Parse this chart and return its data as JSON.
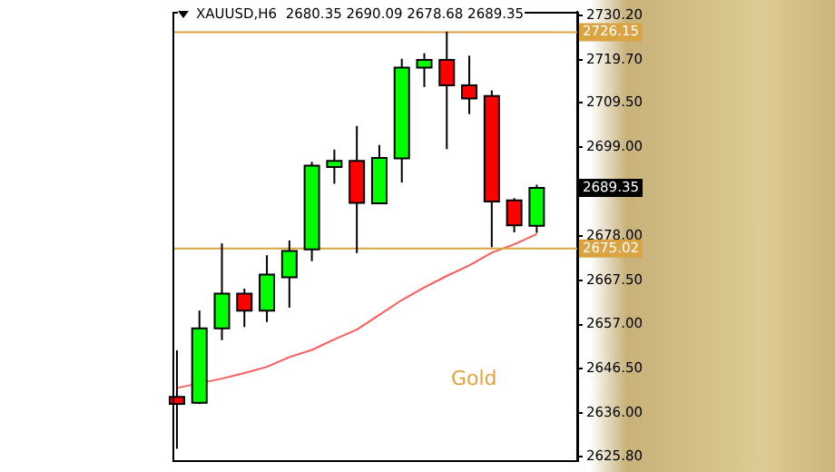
{
  "chart_data": {
    "type": "candlestick",
    "title": "XAUUSD,H6  2680.35 2690.09 2678.68 2689.35",
    "categories": [
      null,
      null,
      null,
      null,
      null,
      null,
      null,
      null,
      null,
      null,
      null,
      null,
      null,
      null,
      null,
      null,
      null
    ],
    "ohlc": [
      [
        2639.9,
        2650.9,
        2627.6,
        2638.2
      ],
      [
        2638.5,
        2660.3,
        2638.2,
        2656.1
      ],
      [
        2656.1,
        2676.2,
        2653.3,
        2664.3
      ],
      [
        2664.3,
        2665.5,
        2656.4,
        2660.3
      ],
      [
        2660.3,
        2673.4,
        2657.6,
        2668.8
      ],
      [
        2668.2,
        2676.9,
        2661.0,
        2674.4
      ],
      [
        2674.8,
        2695.5,
        2672.0,
        2694.6
      ],
      [
        2694.3,
        2698.4,
        2690.3,
        2695.7
      ],
      [
        2695.7,
        2704.0,
        2673.9,
        2685.8
      ],
      [
        2685.7,
        2699.5,
        2685.7,
        2696.4
      ],
      [
        2696.3,
        2719.9,
        2690.6,
        2717.8
      ],
      [
        2717.8,
        2721.2,
        2713.2,
        2719.6
      ],
      [
        2719.6,
        2726.3,
        2698.5,
        2713.6
      ],
      [
        2713.6,
        2720.6,
        2706.8,
        2710.5
      ],
      [
        2711.1,
        2712.4,
        2675.3,
        2686.1
      ],
      [
        2686.4,
        2686.9,
        2678.8,
        2680.5
      ],
      [
        2680.35,
        2690.09,
        2678.68,
        2689.35
      ]
    ],
    "colors": [
      "#ff0000",
      "#00ff00",
      "#00ff00",
      "#ff0000",
      "#00ff00",
      "#00ff00",
      "#00ff00",
      "#00ff00",
      "#ff0000",
      "#00ff00",
      "#00ff00",
      "#00ff00",
      "#ff0000",
      "#ff0000",
      "#ff0000",
      "#ff0000",
      "#00ff00"
    ],
    "series": [
      {
        "type": "line",
        "color": "#ff5a5a",
        "values": [
          2642.0,
          null,
          2644.2,
          2645.5,
          2647.0,
          2649.3,
          2651.0,
          2653.5,
          2655.8,
          2659.3,
          2662.8,
          2665.8,
          2668.5,
          2671.0,
          2674.0,
          2676.0,
          2678.4
        ]
      }
    ],
    "ylim": [
      2624.9,
      2731.0
    ],
    "yticks": [
      {
        "value": 2625.8,
        "label": "2625.80"
      },
      {
        "value": 2636,
        "label": "2636.00"
      },
      {
        "value": 2646.5,
        "label": "2646.50"
      },
      {
        "value": 2657,
        "label": "2657.00"
      },
      {
        "value": 2667.5,
        "label": "2667.50"
      },
      {
        "value": 2678,
        "label": "2678.00"
      },
      {
        "value": 2699,
        "label": "2699.00"
      },
      {
        "value": 2709.5,
        "label": "2709.50"
      },
      {
        "value": 2719.7,
        "label": "2719.70"
      },
      {
        "value": 2730.2,
        "label": "2730.20"
      }
    ],
    "ref_lines": [
      {
        "axis": "y",
        "value": 2726.15,
        "label": "2726.15",
        "color": "#d9a441"
      },
      {
        "axis": "y",
        "value": 2675.02,
        "label": "2675.02",
        "color": "#d9a441"
      }
    ],
    "annotations": [
      "2689.35",
      "Gold"
    ],
    "grid": false,
    "legend": false,
    "tick_labels": "y"
  }
}
